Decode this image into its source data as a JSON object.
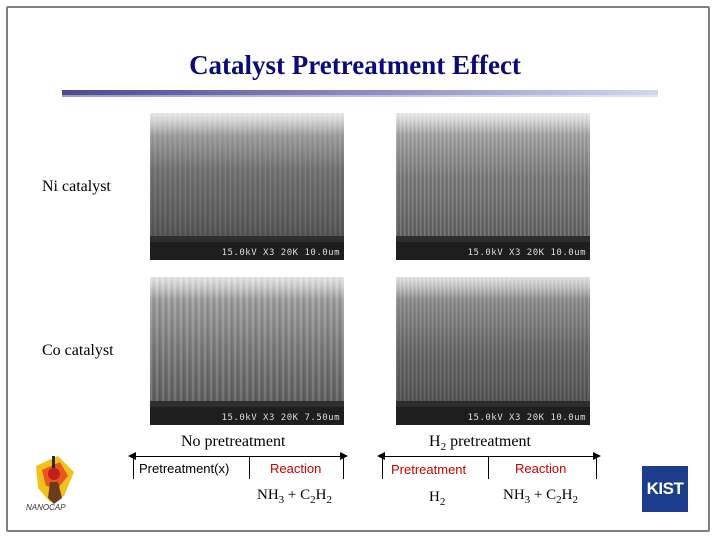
{
  "slide": {
    "title": "Catalyst Pretreatment Effect",
    "row_labels": {
      "ni": "Ni catalyst",
      "co": "Co catalyst"
    },
    "columns": {
      "left_header": "No pretreatment",
      "right_header_prefix": "H",
      "right_header_sub": "2",
      "right_header_suffix": " pretreatment"
    },
    "micrographs": [
      {
        "id": "ni-no-pre",
        "scale_text": "15.0kV X3 20K 10.0um"
      },
      {
        "id": "ni-h2-pre",
        "scale_text": "15.0kV X3 20K 10.0um"
      },
      {
        "id": "co-no-pre",
        "scale_text": "15.0kV X3 20K 7.50um"
      },
      {
        "id": "co-h2-pre",
        "scale_text": "15.0kV X3 20K 10.0um"
      }
    ],
    "process_left": {
      "step1": "Pretreatment(x)",
      "step2": "Reaction",
      "step1_color": "#000000",
      "step2_color": "#cc0000",
      "gas2": {
        "a": "NH",
        "a_sub": "3",
        "b": " + C",
        "b_sub": "2",
        "c": "H",
        "c_sub": "2"
      }
    },
    "process_right": {
      "step1": "Pretreatment",
      "step2": "Reaction",
      "step1_color": "#cc0000",
      "step2_color": "#cc0000",
      "gas1": {
        "a": "H",
        "a_sub": "2"
      },
      "gas2": {
        "a": "NH",
        "a_sub": "3",
        "b": " + C",
        "b_sub": "2",
        "c": "H",
        "c_sub": "2"
      }
    },
    "logos": {
      "left_caption": "NANOCAP",
      "right_text": "KIST",
      "right_color": "#1b3d8c"
    },
    "colors": {
      "title": "#0a0a7a",
      "accent_red": "#cc0000"
    }
  }
}
